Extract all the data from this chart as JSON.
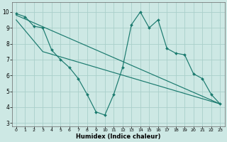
{
  "xlabel": "Humidex (Indice chaleur)",
  "bg_color": "#cde8e4",
  "line_color": "#1a7a6e",
  "grid_color": "#aacfca",
  "xlim": [
    -0.5,
    23.5
  ],
  "ylim": [
    2.8,
    10.6
  ],
  "yticks": [
    3,
    4,
    5,
    6,
    7,
    8,
    9,
    10
  ],
  "xticks": [
    0,
    1,
    2,
    3,
    4,
    5,
    6,
    7,
    8,
    9,
    10,
    11,
    12,
    13,
    14,
    15,
    16,
    17,
    18,
    19,
    20,
    21,
    22,
    23
  ],
  "series1_x": [
    0,
    1,
    2,
    3,
    4,
    5,
    6,
    7,
    8,
    9,
    10,
    11,
    12,
    13,
    14,
    15,
    16,
    17,
    18,
    19,
    20,
    21,
    22,
    23
  ],
  "series1_y": [
    9.9,
    9.7,
    9.1,
    9.0,
    7.6,
    7.0,
    6.5,
    5.8,
    4.8,
    3.7,
    3.5,
    4.8,
    6.5,
    9.2,
    10.0,
    9.0,
    9.5,
    7.7,
    7.4,
    7.3,
    6.1,
    5.8,
    4.8,
    4.2
  ],
  "series2_x": [
    0,
    23
  ],
  "series2_y": [
    9.8,
    4.2
  ],
  "series3_x": [
    0,
    3,
    23
  ],
  "series3_y": [
    9.5,
    7.5,
    4.2
  ]
}
